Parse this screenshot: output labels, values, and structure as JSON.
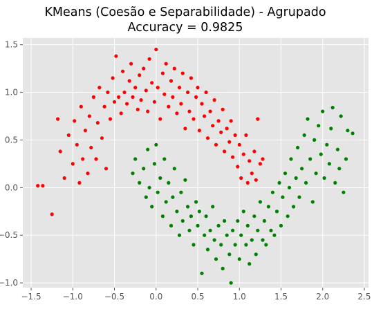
{
  "title_line1": "KMeans (Coesão e Separabilidade) - Agrupado",
  "title_line2": "Accuracy = 0.9825",
  "colors": {
    "panel_bg": "#e5e5e5",
    "grid": "#ffffff",
    "tick_text": "#555555",
    "cluster_red": "#ff0000",
    "cluster_green": "#008000"
  },
  "chart_data": {
    "type": "scatter",
    "title": "KMeans (Coesão e Separabilidade) - Agrupado\nAccuracy = 0.9825",
    "xlabel": "",
    "ylabel": "",
    "xlim": [
      -1.6,
      2.55
    ],
    "ylim": [
      -1.05,
      1.57
    ],
    "xticks": [
      -1.5,
      -1.0,
      -0.5,
      0.0,
      0.5,
      1.0,
      1.5,
      2.0,
      2.5
    ],
    "yticks": [
      -1.0,
      -0.5,
      0.0,
      0.5,
      1.0,
      1.5
    ],
    "xtick_labels": [
      "−1.5",
      "−1.0",
      "−0.5",
      "0.0",
      "0.5",
      "1.0",
      "1.5",
      "2.0",
      "2.5"
    ],
    "ytick_labels": [
      "−1.0",
      "−0.5",
      "0.0",
      "0.5",
      "1.0",
      "1.5"
    ],
    "grid": true,
    "style": "ggplot",
    "series": [
      {
        "color": "#ff0000",
        "points": [
          [
            -1.42,
            0.02
          ],
          [
            -1.36,
            0.02
          ],
          [
            -1.25,
            -0.28
          ],
          [
            -1.18,
            0.72
          ],
          [
            -1.15,
            0.38
          ],
          [
            -1.1,
            0.1
          ],
          [
            -1.05,
            0.55
          ],
          [
            -1.0,
            0.25
          ],
          [
            -0.98,
            0.7
          ],
          [
            -0.95,
            0.45
          ],
          [
            -0.92,
            0.05
          ],
          [
            -0.9,
            0.85
          ],
          [
            -0.88,
            0.3
          ],
          [
            -0.85,
            0.6
          ],
          [
            -0.82,
            0.15
          ],
          [
            -0.8,
            0.75
          ],
          [
            -0.78,
            0.42
          ],
          [
            -0.75,
            0.95
          ],
          [
            -0.72,
            0.3
          ],
          [
            -0.7,
            0.68
          ],
          [
            -0.68,
            1.05
          ],
          [
            -0.65,
            0.52
          ],
          [
            -0.62,
            0.85
          ],
          [
            -0.6,
            0.2
          ],
          [
            -0.58,
            1.0
          ],
          [
            -0.55,
            0.72
          ],
          [
            -0.52,
            1.15
          ],
          [
            -0.5,
            0.9
          ],
          [
            -0.48,
            1.38
          ],
          [
            -0.45,
            0.95
          ],
          [
            -0.42,
            0.78
          ],
          [
            -0.4,
            1.22
          ],
          [
            -0.38,
            1.0
          ],
          [
            -0.35,
            0.88
          ],
          [
            -0.32,
            1.12
          ],
          [
            -0.3,
            1.3
          ],
          [
            -0.28,
            0.95
          ],
          [
            -0.25,
            1.05
          ],
          [
            -0.22,
            0.82
          ],
          [
            -0.2,
            1.18
          ],
          [
            -0.18,
            0.92
          ],
          [
            -0.15,
            1.25
          ],
          [
            -0.12,
            1.02
          ],
          [
            -0.1,
            0.8
          ],
          [
            -0.08,
            1.35
          ],
          [
            -0.05,
            1.1
          ],
          [
            -0.02,
            0.9
          ],
          [
            0.0,
            1.45
          ],
          [
            0.02,
            1.05
          ],
          [
            0.05,
            0.72
          ],
          [
            0.08,
            1.2
          ],
          [
            0.1,
            0.98
          ],
          [
            0.12,
            1.3
          ],
          [
            0.15,
            0.85
          ],
          [
            0.18,
            1.12
          ],
          [
            0.2,
            0.95
          ],
          [
            0.22,
            1.25
          ],
          [
            0.25,
            0.78
          ],
          [
            0.28,
            1.05
          ],
          [
            0.3,
            0.88
          ],
          [
            0.32,
            1.2
          ],
          [
            0.35,
            0.62
          ],
          [
            0.38,
            1.0
          ],
          [
            0.4,
            0.8
          ],
          [
            0.42,
            1.15
          ],
          [
            0.45,
            0.72
          ],
          [
            0.48,
            0.95
          ],
          [
            0.5,
            1.05
          ],
          [
            0.52,
            0.6
          ],
          [
            0.55,
            0.88
          ],
          [
            0.58,
            0.75
          ],
          [
            0.6,
            1.0
          ],
          [
            0.62,
            0.52
          ],
          [
            0.65,
            0.8
          ],
          [
            0.68,
            0.65
          ],
          [
            0.7,
            0.92
          ],
          [
            0.72,
            0.45
          ],
          [
            0.75,
            0.7
          ],
          [
            0.78,
            0.58
          ],
          [
            0.8,
            0.82
          ],
          [
            0.82,
            0.38
          ],
          [
            0.85,
            0.62
          ],
          [
            0.88,
            0.48
          ],
          [
            0.9,
            0.7
          ],
          [
            0.92,
            0.32
          ],
          [
            0.95,
            0.55
          ],
          [
            0.98,
            0.22
          ],
          [
            1.0,
            0.45
          ],
          [
            1.02,
            0.1
          ],
          [
            1.05,
            0.35
          ],
          [
            1.08,
            0.55
          ],
          [
            1.1,
            0.05
          ],
          [
            1.12,
            0.28
          ],
          [
            1.15,
            0.15
          ],
          [
            1.18,
            0.38
          ],
          [
            1.2,
            0.08
          ],
          [
            1.22,
            0.72
          ],
          [
            1.25,
            0.25
          ],
          [
            1.28,
            0.3
          ]
        ]
      },
      {
        "color": "#008000",
        "points": [
          [
            -0.28,
            0.15
          ],
          [
            -0.25,
            0.3
          ],
          [
            -0.2,
            0.05
          ],
          [
            -0.15,
            0.2
          ],
          [
            -0.12,
            -0.1
          ],
          [
            -0.1,
            0.4
          ],
          [
            -0.08,
            0.0
          ],
          [
            -0.05,
            -0.2
          ],
          [
            -0.02,
            0.25
          ],
          [
            0.0,
            0.45
          ],
          [
            0.02,
            -0.05
          ],
          [
            0.05,
            0.1
          ],
          [
            0.08,
            -0.3
          ],
          [
            0.1,
            0.3
          ],
          [
            0.12,
            -0.15
          ],
          [
            0.15,
            0.05
          ],
          [
            0.18,
            -0.4
          ],
          [
            0.2,
            -0.1
          ],
          [
            0.22,
            0.2
          ],
          [
            0.25,
            -0.25
          ],
          [
            0.28,
            -0.5
          ],
          [
            0.3,
            -0.05
          ],
          [
            0.32,
            -0.35
          ],
          [
            0.35,
            0.08
          ],
          [
            0.38,
            -0.2
          ],
          [
            0.4,
            -0.45
          ],
          [
            0.42,
            -0.3
          ],
          [
            0.45,
            -0.6
          ],
          [
            0.48,
            -0.15
          ],
          [
            0.5,
            -0.4
          ],
          [
            0.52,
            -0.25
          ],
          [
            0.55,
            -0.9
          ],
          [
            0.58,
            -0.5
          ],
          [
            0.6,
            -0.3
          ],
          [
            0.62,
            -0.65
          ],
          [
            0.65,
            -0.45
          ],
          [
            0.68,
            -0.2
          ],
          [
            0.7,
            -0.55
          ],
          [
            0.72,
            -0.75
          ],
          [
            0.75,
            -0.4
          ],
          [
            0.78,
            -0.6
          ],
          [
            0.8,
            -0.85
          ],
          [
            0.82,
            -0.35
          ],
          [
            0.85,
            -0.5
          ],
          [
            0.88,
            -0.7
          ],
          [
            0.9,
            -1.0
          ],
          [
            0.92,
            -0.45
          ],
          [
            0.95,
            -0.6
          ],
          [
            0.98,
            -0.35
          ],
          [
            1.0,
            -0.75
          ],
          [
            1.02,
            -0.5
          ],
          [
            1.05,
            -0.25
          ],
          [
            1.08,
            -0.6
          ],
          [
            1.1,
            -0.4
          ],
          [
            1.12,
            -0.8
          ],
          [
            1.15,
            -0.55
          ],
          [
            1.18,
            -0.3
          ],
          [
            1.2,
            -0.7
          ],
          [
            1.22,
            -0.45
          ],
          [
            1.25,
            -0.15
          ],
          [
            1.28,
            -0.55
          ],
          [
            1.3,
            -0.35
          ],
          [
            1.32,
            -0.6
          ],
          [
            1.35,
            -0.2
          ],
          [
            1.38,
            -0.45
          ],
          [
            1.4,
            -0.05
          ],
          [
            1.42,
            -0.5
          ],
          [
            1.45,
            -0.25
          ],
          [
            1.48,
            0.05
          ],
          [
            1.5,
            -0.4
          ],
          [
            1.52,
            -0.1
          ],
          [
            1.55,
            0.15
          ],
          [
            1.58,
            -0.3
          ],
          [
            1.6,
            0.0
          ],
          [
            1.62,
            0.3
          ],
          [
            1.65,
            -0.2
          ],
          [
            1.68,
            0.1
          ],
          [
            1.7,
            0.42
          ],
          [
            1.72,
            -0.1
          ],
          [
            1.75,
            0.2
          ],
          [
            1.78,
            0.55
          ],
          [
            1.8,
            0.05
          ],
          [
            1.82,
            0.72
          ],
          [
            1.85,
            0.3
          ],
          [
            1.88,
            -0.15
          ],
          [
            1.9,
            0.5
          ],
          [
            1.92,
            0.15
          ],
          [
            1.95,
            0.65
          ],
          [
            1.98,
            0.35
          ],
          [
            2.0,
            0.8
          ],
          [
            2.02,
            0.1
          ],
          [
            2.05,
            0.45
          ],
          [
            2.08,
            0.25
          ],
          [
            2.1,
            0.62
          ],
          [
            2.12,
            0.84
          ],
          [
            2.15,
            0.05
          ],
          [
            2.18,
            0.4
          ],
          [
            2.2,
            0.2
          ],
          [
            2.22,
            0.75
          ],
          [
            2.25,
            -0.05
          ],
          [
            2.28,
            0.3
          ],
          [
            2.3,
            0.6
          ],
          [
            2.36,
            0.57
          ]
        ]
      }
    ]
  }
}
